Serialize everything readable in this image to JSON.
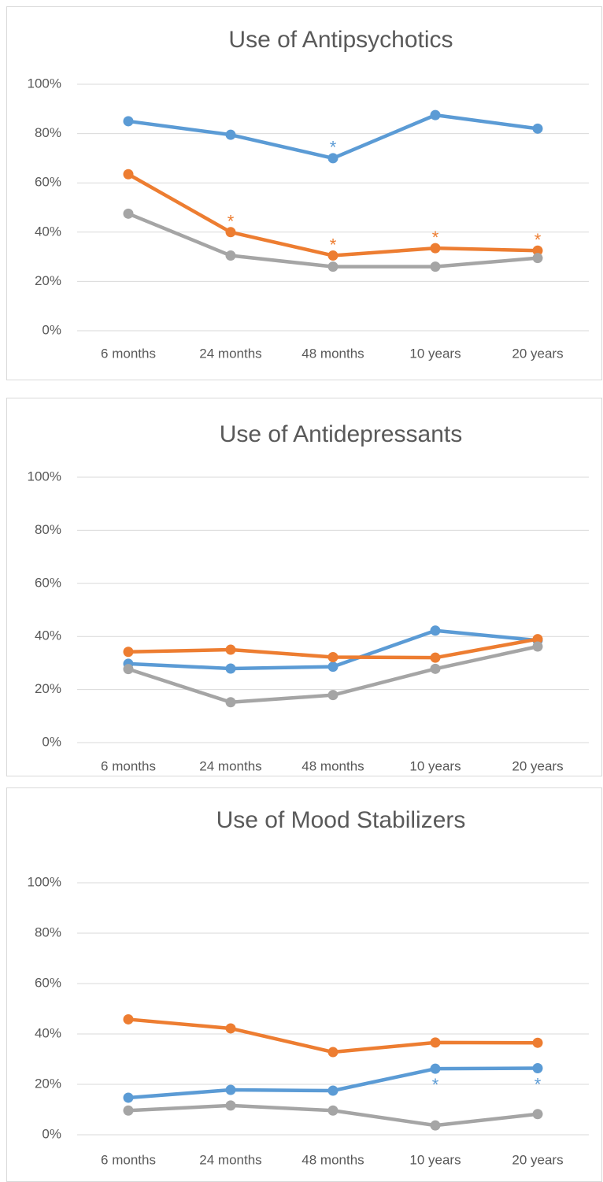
{
  "chart_data": [
    {
      "type": "line",
      "title": "Use of Antipsychotics",
      "categories": [
        "6 months",
        "24 months",
        "48 months",
        "10 years",
        "20 years"
      ],
      "ylim": [
        0,
        100
      ],
      "yticks": [
        {
          "value": 0,
          "label": "0%"
        },
        {
          "value": 20,
          "label": "20%"
        },
        {
          "value": 40,
          "label": "40%"
        },
        {
          "value": 60,
          "label": "60%"
        },
        {
          "value": 80,
          "label": "80%"
        },
        {
          "value": 100,
          "label": "100%"
        }
      ],
      "grid": true,
      "annotation_position": "above",
      "series": [
        {
          "color": "#5b9bd5",
          "values": [
            85,
            79.5,
            70,
            87.5,
            82
          ],
          "annotations": [
            null,
            null,
            "*",
            null,
            null
          ]
        },
        {
          "color": "#ed7d31",
          "values": [
            63.5,
            40,
            30.5,
            33.5,
            32.5
          ],
          "annotations": [
            null,
            "*",
            "*",
            "*",
            "*"
          ]
        },
        {
          "color": "#a5a5a5",
          "values": [
            47.5,
            30.5,
            26,
            26,
            29.5
          ]
        }
      ]
    },
    {
      "type": "line",
      "title": "Use of Antidepressants",
      "categories": [
        "6 months",
        "24 months",
        "48 months",
        "10 years",
        "20 years"
      ],
      "ylim": [
        0,
        100
      ],
      "yticks": [
        {
          "value": 0,
          "label": "0%"
        },
        {
          "value": 20,
          "label": "20%"
        },
        {
          "value": 40,
          "label": "40%"
        },
        {
          "value": 60,
          "label": "60%"
        },
        {
          "value": 80,
          "label": "80%"
        },
        {
          "value": 100,
          "label": "100%"
        }
      ],
      "grid": true,
      "series": [
        {
          "color": "#5b9bd5",
          "values": [
            29.7,
            27.9,
            28.6,
            42.2,
            38.5
          ]
        },
        {
          "color": "#ed7d31",
          "values": [
            34.2,
            35,
            32.2,
            32,
            39
          ]
        },
        {
          "color": "#a5a5a5",
          "values": [
            27.7,
            15.2,
            17.9,
            27.8,
            36.2
          ]
        }
      ]
    },
    {
      "type": "line",
      "title": "Use of Mood Stabilizers",
      "categories": [
        "6 months",
        "24 months",
        "48 months",
        "10 years",
        "20 years"
      ],
      "ylim": [
        0,
        100
      ],
      "yticks": [
        {
          "value": 0,
          "label": "0%"
        },
        {
          "value": 20,
          "label": "20%"
        },
        {
          "value": 40,
          "label": "40%"
        },
        {
          "value": 60,
          "label": "60%"
        },
        {
          "value": 80,
          "label": "80%"
        },
        {
          "value": 100,
          "label": "100%"
        }
      ],
      "grid": true,
      "annotation_position": "below",
      "series": [
        {
          "color": "#5b9bd5",
          "values": [
            14.7,
            17.8,
            17.5,
            26.2,
            26.4
          ],
          "annotations": [
            null,
            null,
            null,
            "*",
            "*"
          ]
        },
        {
          "color": "#ed7d31",
          "values": [
            45.8,
            42.2,
            32.8,
            36.6,
            36.5
          ]
        },
        {
          "color": "#a5a5a5",
          "values": [
            9.6,
            11.6,
            9.6,
            3.7,
            8.2
          ]
        }
      ]
    }
  ]
}
